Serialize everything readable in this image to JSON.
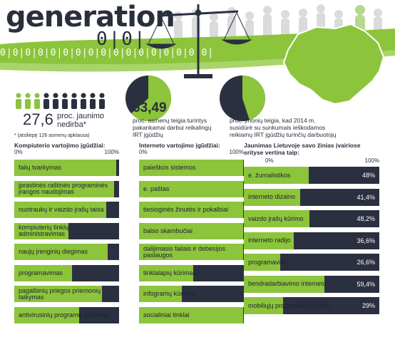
{
  "header": {
    "logo_main": "generation",
    "logo_sub": "0|0|",
    "binary_strip": "0|0|0|0|0|0|0|0|0|0|0|0|0|0|0|0|0|"
  },
  "colors": {
    "accent_green": "#8cc43c",
    "dark_navy": "#2b3040",
    "text_dark": "#2a2f3c"
  },
  "stat_unemployed": {
    "value": "27,6",
    "text": "proc. jaunimo nedirba*",
    "note": "* (atsiliepę 126 asmenų apklausa)",
    "icons_total": 10,
    "icons_green": 3
  },
  "stat_1": {
    "value": "63,49",
    "text": "proc. asmenų teigia turintys pakankamai darbui reikalingų IRT įgūdžių",
    "fraction": 0.6349
  },
  "stat_2": {
    "value": "45",
    "text": "proc. įmonių teigia, kad 2014 m. susidūrė su sunkumais ieškodamos reikiamų IRT įgūdžių turinčių darbuotojų",
    "fraction": 0.45
  },
  "scale": {
    "min": "0%",
    "max": "100%"
  },
  "chart_data": [
    {
      "type": "bar",
      "title": "Kompiuterio vartojimo įgūdžiai:",
      "categories": [
        "failų tvarkymas",
        "įprastinės raštinės programinės įrangos naudojimas",
        "nuotraukų ir vaizdo įrašų taisa",
        "kompiuterių tinklų administravimas",
        "naujų įrenginių diegimas",
        "programavimas",
        "pagalbinių priegos priemonių taikymas",
        "antivirusinių programų taikymas"
      ],
      "values": [
        97,
        95,
        88,
        52,
        89,
        55,
        84,
        62
      ],
      "xlim": [
        0,
        100
      ]
    },
    {
      "type": "bar",
      "title": "Interneto vartojimo įgūdžiai:",
      "categories": [
        "paieškos sistemos",
        "e. paštas",
        "tiesioginės žinutės ir pokalbiai",
        "balso skambučiai",
        "dalijimasis failais ir debesijos paslaugos",
        "tinklalapių kūrimas",
        "infogramų kūrimas",
        "socialiniai tinklai"
      ],
      "values": [
        99,
        99,
        99,
        99,
        99,
        52,
        41,
        99
      ],
      "xlim": [
        0,
        100
      ]
    },
    {
      "type": "bar",
      "title": "Jaunimas Lietuvoje savo žinias įvairiose srityse vertina taip:",
      "categories": [
        "e. žurnalistikos",
        "interneto dizaino",
        "vaizdo įrašų kūrimo",
        "interneto radijo",
        "programavimo",
        "bendradarbiavimo internetu",
        "mobiliųjų programėlių kūrimo"
      ],
      "values": [
        48,
        41.4,
        48.2,
        36.6,
        26.6,
        59.4,
        29
      ],
      "value_labels": [
        "48%",
        "41,4%",
        "48,2%",
        "36,6%",
        "26,6%",
        "59,4%",
        "29%"
      ],
      "xlim": [
        0,
        100
      ]
    }
  ]
}
